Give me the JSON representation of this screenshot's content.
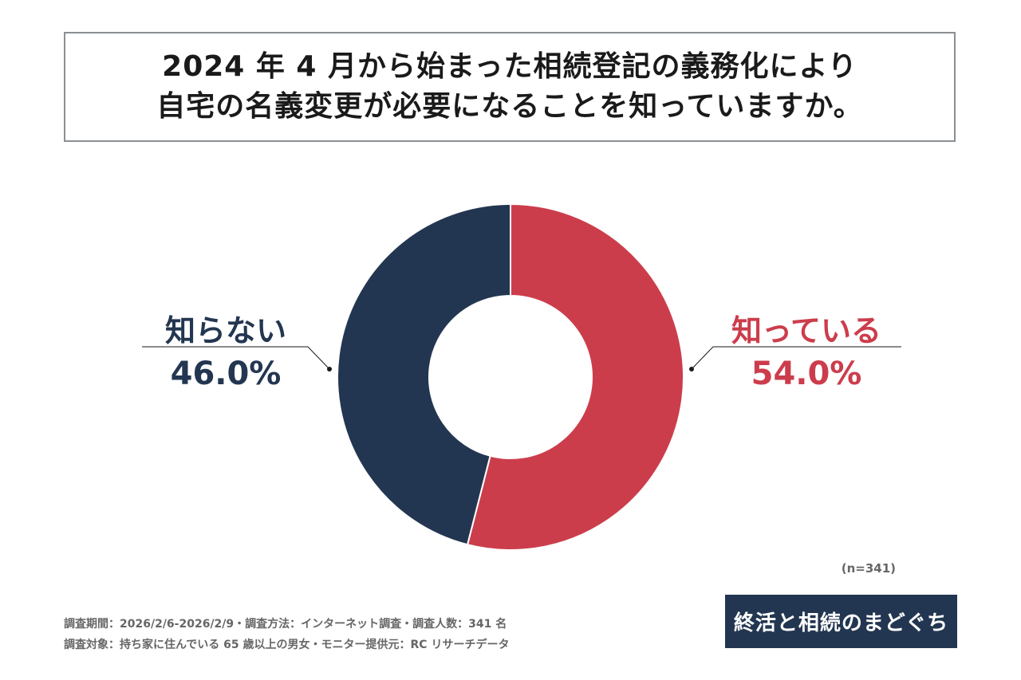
{
  "title": {
    "line1": "2024 年 4 月から始まった相続登記の義務化により",
    "line2": "自宅の名義変更が必要になることを知っていますか。"
  },
  "chart_data": {
    "type": "pie",
    "donut": true,
    "title": "2024 年 4 月から始まった相続登記の義務化により自宅の名義変更が必要になることを知っていますか。",
    "slices": [
      {
        "label": "知っている",
        "value": 54.0,
        "display": "54.0%",
        "color": "#cc3d4c"
      },
      {
        "label": "知らない",
        "value": 46.0,
        "display": "46.0%",
        "color": "#233651"
      }
    ],
    "n": "(n=341)"
  },
  "footer": {
    "line1": "調査期間：2026/2/6-2026/2/9・調査方法：インターネット調査・調査人数：341 名",
    "line2": "調査対象：持ち家に住んでいる 65 歳以上の男女・モニター提供元：RC リサーチデータ"
  },
  "logo": {
    "part1": "終活",
    "part2": "と相続のまどぐち"
  },
  "colors": {
    "known": "#cc3d4c",
    "unknown": "#233651",
    "logo_bg": "#233651"
  }
}
